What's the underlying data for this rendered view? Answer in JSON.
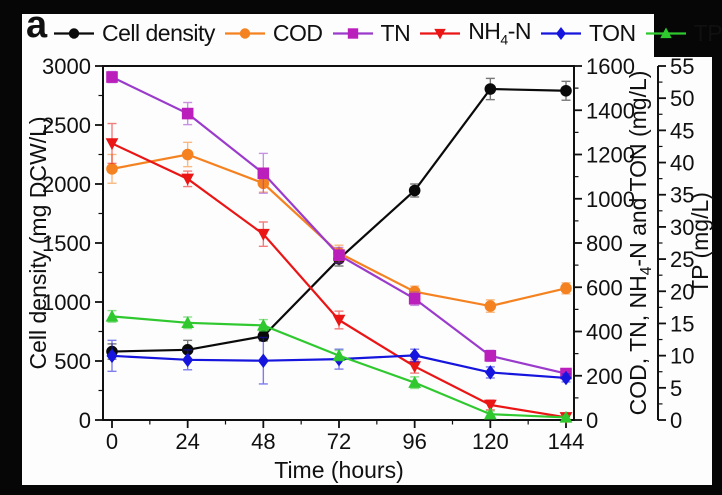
{
  "panel_label": "a",
  "style": {
    "frame_color": "#060606",
    "canvas_color": "#fdfdfd",
    "text_color": "#101010"
  },
  "chart_data": {
    "type": "line",
    "title": "",
    "xlabel": "Time (hours)",
    "x": [
      0,
      24,
      48,
      72,
      96,
      120,
      144
    ],
    "grid": false,
    "legend_position": "top",
    "axes": {
      "x": {
        "label": "Time (hours)",
        "min": 0,
        "max": 144,
        "ticks": [
          0,
          24,
          48,
          72,
          96,
          120,
          144
        ],
        "minor_step": 12
      },
      "left": {
        "label": "Cell density (mg DCW/L)",
        "min": 0,
        "max": 3000,
        "ticks": [
          0,
          500,
          1000,
          1500,
          2000,
          2500,
          3000
        ],
        "minor_step": 250
      },
      "right1": {
        "label": "COD, TN, NH₄-N and TON (mg/L)",
        "min": 0,
        "max": 1600,
        "ticks": [
          0,
          200,
          400,
          600,
          800,
          1000,
          1200,
          1400,
          1600
        ],
        "minor_step": 100
      },
      "right2": {
        "label": "TP (mg/L)",
        "min": 0,
        "max": 55,
        "ticks": [
          0,
          5,
          10,
          15,
          20,
          25,
          30,
          35,
          40,
          45,
          50,
          55
        ],
        "minor_step": 2.5
      }
    },
    "series": [
      {
        "name": "Cell density",
        "axis": "left",
        "units": "mg DCW/L",
        "color": "#0a0a0a",
        "marker": "circle",
        "values": [
          580,
          595,
          710,
          1365,
          1945,
          2805,
          2790
        ],
        "errors": [
          65,
          80,
          40,
          60,
          55,
          90,
          80
        ]
      },
      {
        "name": "COD",
        "axis": "right1",
        "units": "mg/L",
        "color": "#F58220",
        "marker": "circle",
        "values": [
          1135,
          1200,
          1070,
          755,
          580,
          515,
          595
        ],
        "errors": [
          65,
          55,
          40,
          35,
          25,
          28,
          25
        ]
      },
      {
        "name": "TN",
        "axis": "right1",
        "units": "mg/L",
        "color": "#9A3BCC",
        "marker_color": "#BB1FBB",
        "marker": "square",
        "values": [
          1550,
          1385,
          1115,
          745,
          548,
          290,
          210
        ],
        "errors": [
          25,
          50,
          90,
          35,
          30,
          25,
          15
        ]
      },
      {
        "name": "NH₄-N",
        "axis": "right1",
        "units": "mg/L",
        "color": "#EA1515",
        "marker": "triangle-down",
        "values": [
          1250,
          1090,
          840,
          452,
          242,
          68,
          12
        ],
        "errors": [
          90,
          35,
          55,
          40,
          30,
          22,
          10
        ]
      },
      {
        "name": "TON",
        "axis": "right1",
        "units": "mg/L",
        "color": "#1515DD",
        "marker": "diamond",
        "values": [
          290,
          272,
          268,
          275,
          292,
          215,
          190
        ],
        "errors": [
          70,
          45,
          105,
          45,
          28,
          25,
          18
        ]
      },
      {
        "name": "TP",
        "axis": "right2",
        "units": "mg/L",
        "color": "#2FC82F",
        "marker": "triangle-up",
        "values": [
          16.1,
          15.1,
          14.7,
          10.0,
          5.8,
          0.9,
          0.4
        ],
        "errors": [
          0.9,
          0.9,
          0.9,
          0.8,
          0.9,
          0.5,
          0.3
        ]
      }
    ]
  }
}
